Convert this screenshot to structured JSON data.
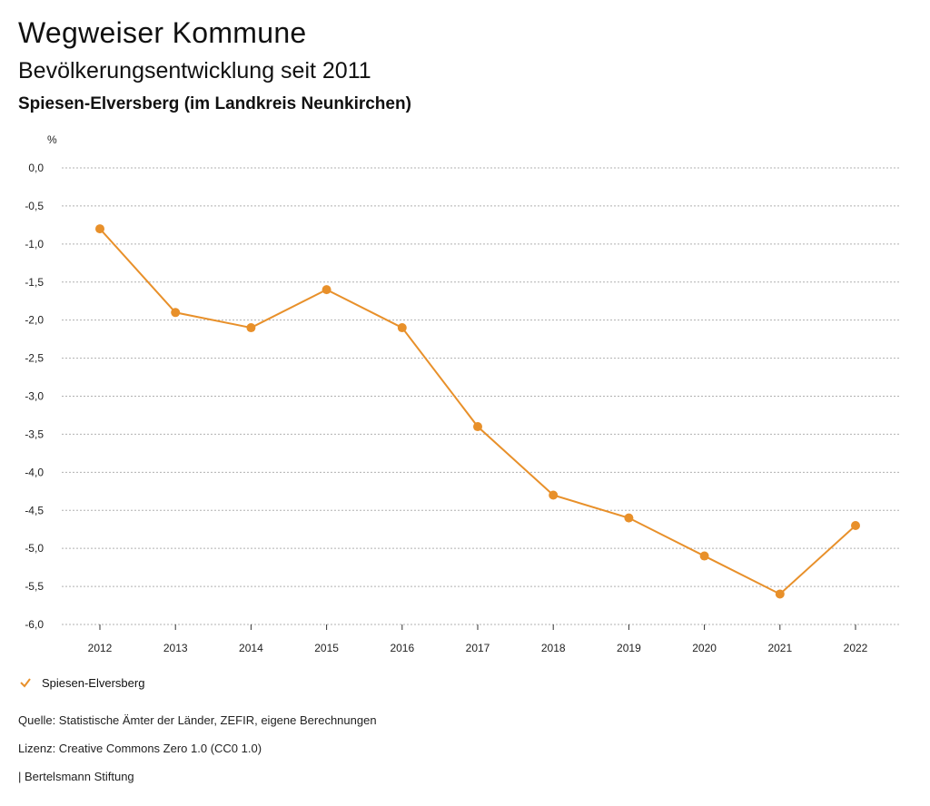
{
  "header": {
    "title": "Wegweiser Kommune",
    "subtitle": "Bevölkerungsentwicklung seit 2011",
    "region": "Spiesen-Elversberg (im Landkreis Neunkirchen)"
  },
  "chart_data": {
    "type": "line",
    "ylabel": "%",
    "categories": [
      "2012",
      "2013",
      "2014",
      "2015",
      "2016",
      "2017",
      "2018",
      "2019",
      "2020",
      "2021",
      "2022"
    ],
    "series": [
      {
        "name": "Spiesen-Elversberg",
        "values": [
          -0.8,
          -1.9,
          -2.1,
          -1.6,
          -2.1,
          -3.4,
          -4.3,
          -4.6,
          -5.1,
          -5.6,
          -4.7
        ],
        "color": "#E8902A"
      }
    ],
    "ylim": [
      -6.0,
      0.0
    ],
    "yticks": [
      "0,0",
      "-0,5",
      "-1,0",
      "-1,5",
      "-2,0",
      "-2,5",
      "-3,0",
      "-3,5",
      "-4,0",
      "-4,5",
      "-5,0",
      "-5,5",
      "-6,0"
    ],
    "ytick_values": [
      0,
      -0.5,
      -1,
      -1.5,
      -2,
      -2.5,
      -3,
      -3.5,
      -4,
      -4.5,
      -5,
      -5.5,
      -6
    ],
    "grid": true,
    "legend_position": "bottom-left"
  },
  "footer": {
    "source": "Quelle: Statistische Ämter der Länder, ZEFIR, eigene Berechnungen",
    "license": "Lizenz: Creative Commons Zero 1.0 (CC0 1.0)",
    "publisher": "| Bertelsmann Stiftung"
  }
}
